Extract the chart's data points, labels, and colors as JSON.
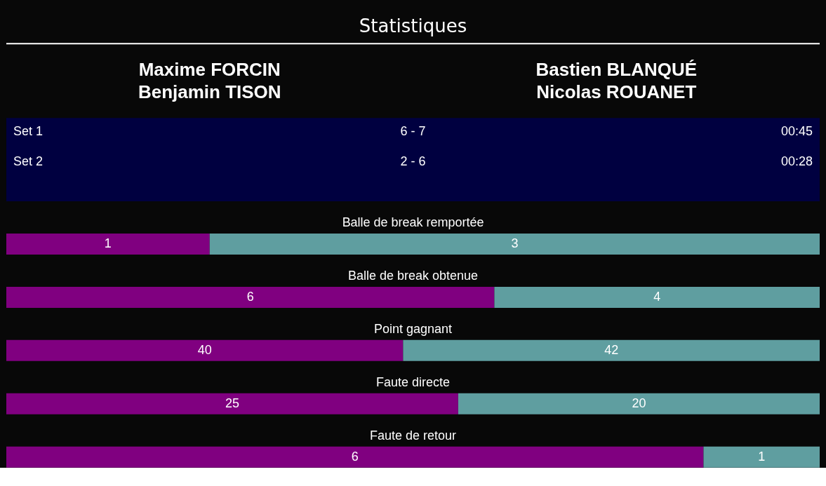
{
  "chart_data": [
    {
      "type": "other",
      "title": "Statistiques",
      "annotations": [
        "Maxime FORCIN\nBenjamin TISON",
        "Bastien BLANQUÉ\nNicolas ROUANET",
        "Set 1",
        "6 - 7",
        "00:45",
        "Set 2",
        "2 - 6",
        "00:28"
      ]
    },
    {
      "type": "bar",
      "title": "Balle de break remportée",
      "orientation": "horizontal",
      "stacked": true,
      "data_labels": true,
      "categories": [
        null
      ],
      "xlim": [
        0,
        4
      ],
      "series": [
        {
          "color": "#800080",
          "values": [
            1
          ]
        },
        {
          "color": "#5f9ea0",
          "values": [
            3
          ]
        }
      ]
    },
    {
      "type": "bar",
      "title": "Balle de break obtenue",
      "orientation": "horizontal",
      "stacked": true,
      "data_labels": true,
      "categories": [
        null
      ],
      "xlim": [
        0,
        10
      ],
      "series": [
        {
          "color": "#800080",
          "values": [
            6
          ]
        },
        {
          "color": "#5f9ea0",
          "values": [
            4
          ]
        }
      ]
    },
    {
      "type": "bar",
      "title": "Point gagnant",
      "orientation": "horizontal",
      "stacked": true,
      "data_labels": true,
      "categories": [
        null
      ],
      "xlim": [
        0,
        82
      ],
      "series": [
        {
          "color": "#800080",
          "values": [
            40
          ]
        },
        {
          "color": "#5f9ea0",
          "values": [
            42
          ]
        }
      ]
    },
    {
      "type": "bar",
      "title": "Faute directe",
      "orientation": "horizontal",
      "stacked": true,
      "data_labels": true,
      "categories": [
        null
      ],
      "xlim": [
        0,
        45
      ],
      "series": [
        {
          "color": "#800080",
          "values": [
            25
          ]
        },
        {
          "color": "#5f9ea0",
          "values": [
            20
          ]
        }
      ]
    },
    {
      "type": "bar",
      "title": "Faute de retour",
      "orientation": "horizontal",
      "stacked": true,
      "data_labels": true,
      "categories": [
        null
      ],
      "xlim": [
        0,
        7
      ],
      "series": [
        {
          "color": "#800080",
          "values": [
            6
          ]
        },
        {
          "color": "#5f9ea0",
          "values": [
            1
          ]
        }
      ]
    }
  ]
}
